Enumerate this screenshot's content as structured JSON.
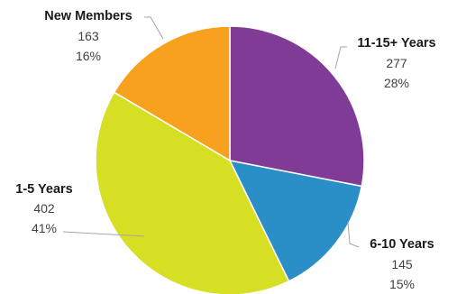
{
  "chart_data": {
    "type": "pie",
    "slices": [
      {
        "label": "11-15+ Years",
        "value": 277,
        "percent": "28%",
        "color": "#7F3B96"
      },
      {
        "label": "6-10 Years",
        "value": 145,
        "percent": "15%",
        "color": "#2A8FC7"
      },
      {
        "label": "1-5 Years",
        "value": 402,
        "percent": "41%",
        "color": "#D6DF23"
      },
      {
        "label": "New Members",
        "value": 163,
        "percent": "16%",
        "color": "#F7A11E"
      }
    ],
    "start": "12 o'clock",
    "direction": "clockwise",
    "legend": "none"
  }
}
